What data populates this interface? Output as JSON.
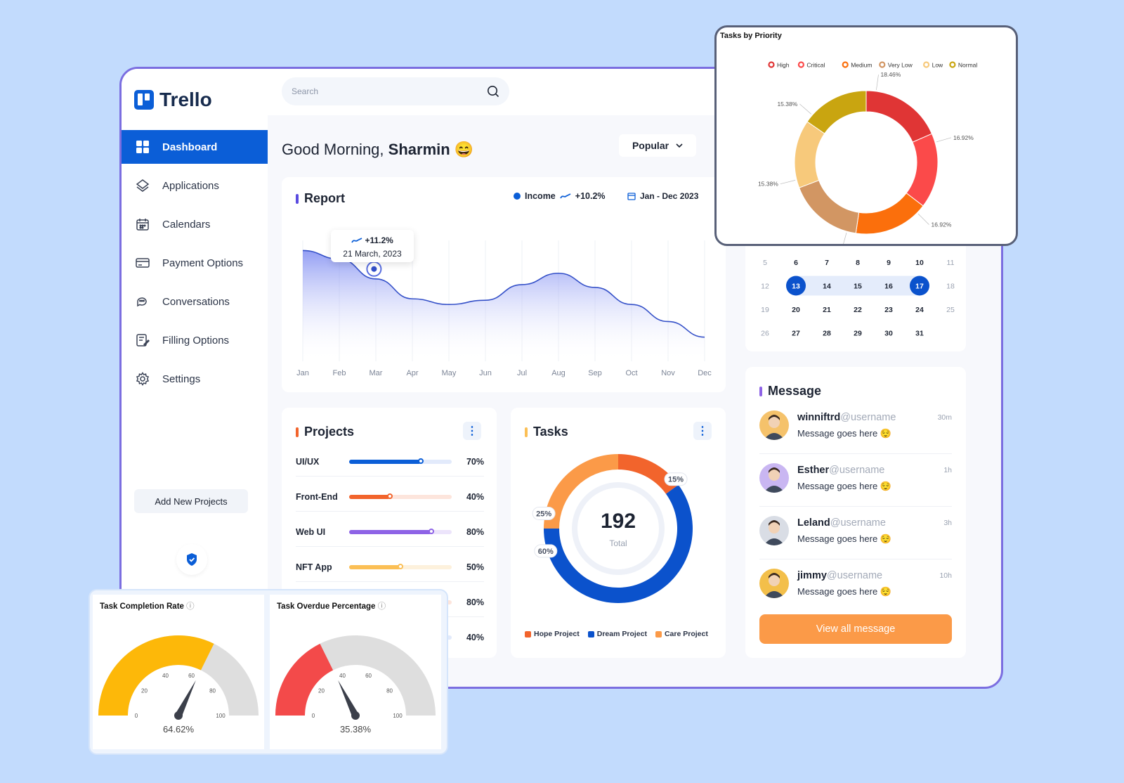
{
  "app": {
    "name": "Trello"
  },
  "sidebar": {
    "items": [
      {
        "label": "Dashboard",
        "icon": "grid-icon",
        "active": true
      },
      {
        "label": "Applications",
        "icon": "layers-icon"
      },
      {
        "label": "Calendars",
        "icon": "calendar-icon"
      },
      {
        "label": "Payment Options",
        "icon": "card-icon"
      },
      {
        "label": "Conversations",
        "icon": "chat-icon"
      },
      {
        "label": "Filling Options",
        "icon": "edit-icon"
      },
      {
        "label": "Settings",
        "icon": "gear-icon"
      }
    ],
    "add_button": "Add New Projects"
  },
  "search": {
    "placeholder": "Search"
  },
  "greeting": {
    "prefix": "Good Morning,",
    "name": "Sharmin",
    "emoji": "😄"
  },
  "filter": {
    "selected": "Popular"
  },
  "report": {
    "title": "Report",
    "legend_label": "Income",
    "legend_change": "+10.2%",
    "date_range": "Jan - Dec 2023",
    "tooltip_change": "+11.2%",
    "tooltip_date": "21 March, 2023",
    "chart_data": {
      "type": "area",
      "categories": [
        "Jan",
        "Feb",
        "Mar",
        "Apr",
        "May",
        "Jun",
        "Jul",
        "Aug",
        "Sep",
        "Oct",
        "Nov",
        "Dec"
      ],
      "series": [
        {
          "name": "Income",
          "values": [
            78,
            72,
            58,
            44,
            40,
            43,
            54,
            62,
            52,
            40,
            28,
            17
          ]
        }
      ],
      "ylim": [
        0,
        100
      ],
      "highlight_index": 2,
      "color": "#3450c8"
    }
  },
  "projects": {
    "title": "Projects",
    "rows": [
      {
        "name": "UI/UX",
        "pct_label": "70%",
        "value": 0.7,
        "color": "#0b5ed7",
        "track": "#e2eafb"
      },
      {
        "name": "Front-End",
        "pct_label": "40%",
        "value": 0.4,
        "color": "#f2642c",
        "track": "#fde5dc"
      },
      {
        "name": "Web UI",
        "pct_label": "80%",
        "value": 0.8,
        "color": "#8e63e6",
        "track": "#ece4fb"
      },
      {
        "name": "NFT App",
        "pct_label": "50%",
        "value": 0.5,
        "color": "#fbbf55",
        "track": "#fdf1dc"
      },
      {
        "name": "",
        "pct_label": "80%",
        "value": 0.8,
        "color": "#f2642c",
        "track": "#fde5dc"
      },
      {
        "name": "",
        "pct_label": "40%",
        "value": 0.4,
        "color": "#0b5ed7",
        "track": "#e2eafb"
      }
    ]
  },
  "tasks": {
    "title": "Tasks",
    "total": "192",
    "total_label": "Total",
    "chart_data": {
      "type": "pie",
      "slices": [
        {
          "label": "Hope Project",
          "value": 15,
          "text": "15%",
          "color": "#f2642c"
        },
        {
          "label": "Dream Project",
          "value": 60,
          "text": "60%",
          "color": "#0b52cc"
        },
        {
          "label": "Care Project",
          "value": 25,
          "text": "25%",
          "color": "#fb9a48"
        }
      ]
    }
  },
  "calendar": {
    "rows": [
      [
        "5",
        "6",
        "7",
        "8",
        "9",
        "10",
        "11"
      ],
      [
        "12",
        "13",
        "14",
        "15",
        "16",
        "17",
        "18"
      ],
      [
        "19",
        "20",
        "21",
        "22",
        "23",
        "24",
        "25"
      ],
      [
        "26",
        "27",
        "28",
        "29",
        "30",
        "31",
        ""
      ]
    ],
    "selected_start": "13",
    "selected_end": "17"
  },
  "messages": {
    "title": "Message",
    "items": [
      {
        "user": "winniftrd",
        "handle": "@username",
        "text": "Message goes here",
        "emoji": "😌",
        "time": "30m",
        "avatar_color": "#f5c26b"
      },
      {
        "user": "Esther",
        "handle": "@username",
        "text": "Message goes here",
        "emoji": "😌",
        "time": "1h",
        "avatar_color": "#c9b6f2"
      },
      {
        "user": "Leland",
        "handle": "@username",
        "text": "Message goes here",
        "emoji": "😌",
        "time": "3h",
        "avatar_color": "#d9dde5"
      },
      {
        "user": "jimmy",
        "handle": "@username",
        "text": "Message goes here",
        "emoji": "😌",
        "time": "10h",
        "avatar_color": "#f3bf4a"
      }
    ],
    "view_all": "View all message"
  },
  "priority": {
    "title": "Tasks by Priority",
    "chart_data": {
      "type": "pie",
      "slices": [
        {
          "label": "High",
          "value": 18.46,
          "text": "18.46%",
          "color": "#e03535"
        },
        {
          "label": "Critical",
          "value": 16.92,
          "text": "16.92%",
          "color": "#fb4a4a"
        },
        {
          "label": "Medium",
          "value": 16.92,
          "text": "16.92%",
          "color": "#fb6f0c"
        },
        {
          "label": "Very Low",
          "value": 16.92,
          "text": "16.92%",
          "color": "#d29663"
        },
        {
          "label": "Low",
          "value": 15.38,
          "text": "15.38%",
          "color": "#f7c97b"
        },
        {
          "label": "Normal",
          "value": 15.38,
          "text": "15.38%",
          "color": "#c9a510"
        }
      ]
    }
  },
  "gauges": [
    {
      "title": "Task Completion Rate",
      "value": 64.62,
      "value_text": "64.62%",
      "color": "#fdb809",
      "ticks": [
        "0",
        "20",
        "40",
        "60",
        "80",
        "100"
      ]
    },
    {
      "title": "Task Overdue Percentage",
      "value": 35.38,
      "value_text": "35.38%",
      "color": "#f34a4a",
      "ticks": [
        "0",
        "20",
        "40",
        "60",
        "80",
        "100"
      ]
    }
  ]
}
